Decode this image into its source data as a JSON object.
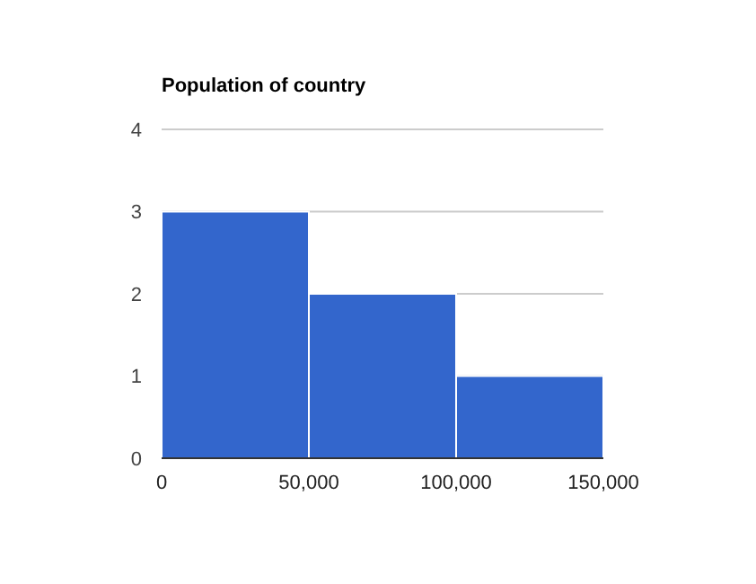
{
  "chart_data": {
    "type": "histogram",
    "title": "Population of country",
    "bins": [
      0,
      50000,
      100000,
      150000
    ],
    "values": [
      3,
      2,
      1
    ],
    "color": "#3366cc",
    "xlim": [
      0,
      150000
    ],
    "xticks": [
      0,
      {
        "value": 50000,
        "label": "50,000"
      },
      {
        "value": 100000,
        "label": "100,000"
      },
      {
        "value": 150000,
        "label": "150,000"
      }
    ],
    "ylim": [
      0,
      4
    ],
    "yticks": [
      0,
      1,
      2,
      3,
      4
    ],
    "grid": "y"
  }
}
